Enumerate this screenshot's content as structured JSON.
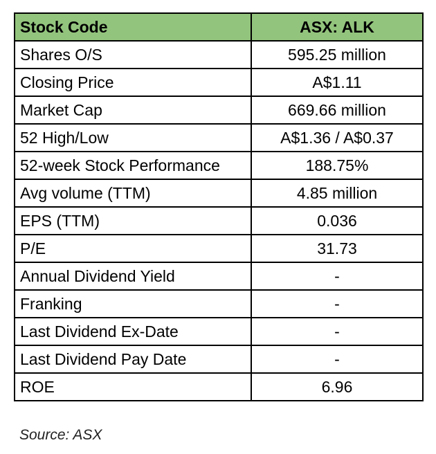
{
  "table": {
    "header": {
      "label": "Stock Code",
      "value": "ASX: ALK"
    },
    "rows": [
      {
        "label": "Shares O/S",
        "value": "595.25 million"
      },
      {
        "label": "Closing Price",
        "value": "A$1.11"
      },
      {
        "label": "Market Cap",
        "value": "669.66 million"
      },
      {
        "label": "52 High/Low",
        "value": "A$1.36 / A$0.37"
      },
      {
        "label": "52-week Stock Performance",
        "value": "188.75%"
      },
      {
        "label": "Avg volume (TTM)",
        "value": "4.85 million"
      },
      {
        "label": "EPS (TTM)",
        "value": "0.036"
      },
      {
        "label": "P/E",
        "value": "31.73"
      },
      {
        "label": "Annual Dividend Yield",
        "value": "-"
      },
      {
        "label": "Franking",
        "value": "-"
      },
      {
        "label": "Last Dividend Ex-Date",
        "value": "-"
      },
      {
        "label": "Last Dividend Pay Date",
        "value": "-"
      },
      {
        "label": "ROE",
        "value": "6.96"
      }
    ],
    "header_color": "#93c47d"
  },
  "source": "Source: ASX"
}
